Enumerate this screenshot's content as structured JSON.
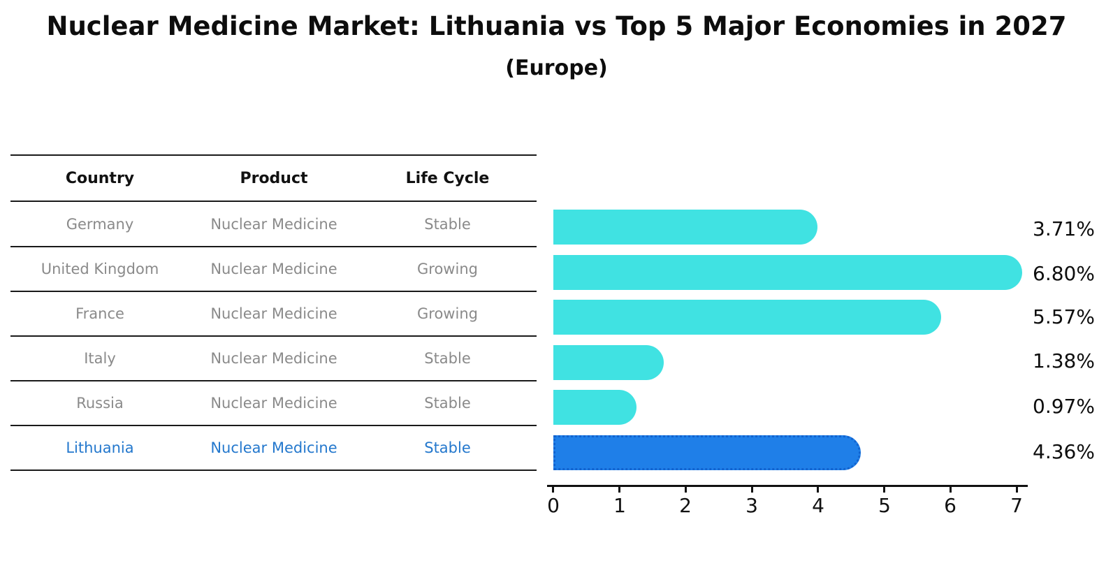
{
  "header": {
    "title": "Nuclear Medicine Market: Lithuania vs Top 5 Major Economies in 2027",
    "subtitle": "(Europe)"
  },
  "table": {
    "columns": [
      "Country",
      "Product",
      "Life Cycle"
    ],
    "rows": [
      {
        "country": "Germany",
        "product": "Nuclear Medicine",
        "life_cycle": "Stable"
      },
      {
        "country": "United Kingdom",
        "product": "Nuclear Medicine",
        "life_cycle": "Growing"
      },
      {
        "country": "France",
        "product": "Nuclear Medicine",
        "life_cycle": "Growing"
      },
      {
        "country": "Italy",
        "product": "Nuclear Medicine",
        "life_cycle": "Stable"
      },
      {
        "country": "Russia",
        "product": "Nuclear Medicine",
        "life_cycle": "Stable"
      },
      {
        "country": "Lithuania",
        "product": "Nuclear Medicine",
        "life_cycle": "Stable"
      }
    ]
  },
  "chart_data": {
    "type": "bar",
    "orientation": "horizontal",
    "categories": [
      "Germany",
      "United Kingdom",
      "France",
      "Italy",
      "Russia",
      "Lithuania"
    ],
    "values": [
      3.71,
      6.8,
      5.57,
      1.38,
      0.97,
      4.36
    ],
    "value_labels": [
      "3.71%",
      "6.80%",
      "5.57%",
      "1.38%",
      "0.97%",
      "4.36%"
    ],
    "xlim": [
      0,
      7
    ],
    "xticks": [
      "0",
      "1",
      "2",
      "3",
      "4",
      "5",
      "6",
      "7"
    ],
    "grid": "off",
    "legend": "none",
    "bar_color": "#40E2E2",
    "highlight_index": 5,
    "highlight_bar_color": "#1F7FE8",
    "highlight_border_color": "#1263CF",
    "highlight_text_color": "#2478CD"
  }
}
